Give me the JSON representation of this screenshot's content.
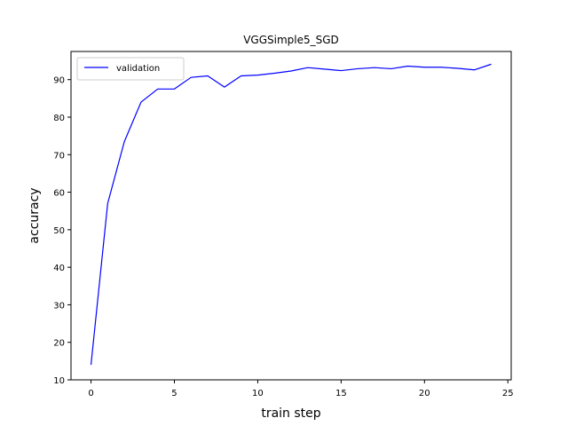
{
  "chart_data": {
    "type": "line",
    "title": "VGGSimple5_SGD",
    "xlabel": "train step",
    "ylabel": "accuracy",
    "xlim": [
      -1.2,
      25.2
    ],
    "ylim": [
      10,
      97.5
    ],
    "xticks": [
      0,
      5,
      10,
      15,
      20,
      25
    ],
    "yticks": [
      10,
      20,
      30,
      40,
      50,
      60,
      70,
      80,
      90
    ],
    "grid": false,
    "legend_position": "top-left",
    "series": [
      {
        "name": "validation",
        "color": "#0000ff",
        "x": [
          0,
          1,
          2,
          3,
          4,
          5,
          6,
          7,
          8,
          9,
          10,
          11,
          12,
          13,
          14,
          15,
          16,
          17,
          18,
          19,
          20,
          21,
          22,
          23,
          24
        ],
        "y": [
          14,
          57,
          73.5,
          84,
          87.5,
          87.5,
          90.6,
          91,
          88,
          91,
          91.2,
          91.7,
          92.3,
          93.2,
          92.8,
          92.4,
          92.9,
          93.2,
          92.9,
          93.6,
          93.3,
          93.3,
          93,
          92.6,
          94.1
        ]
      }
    ]
  }
}
